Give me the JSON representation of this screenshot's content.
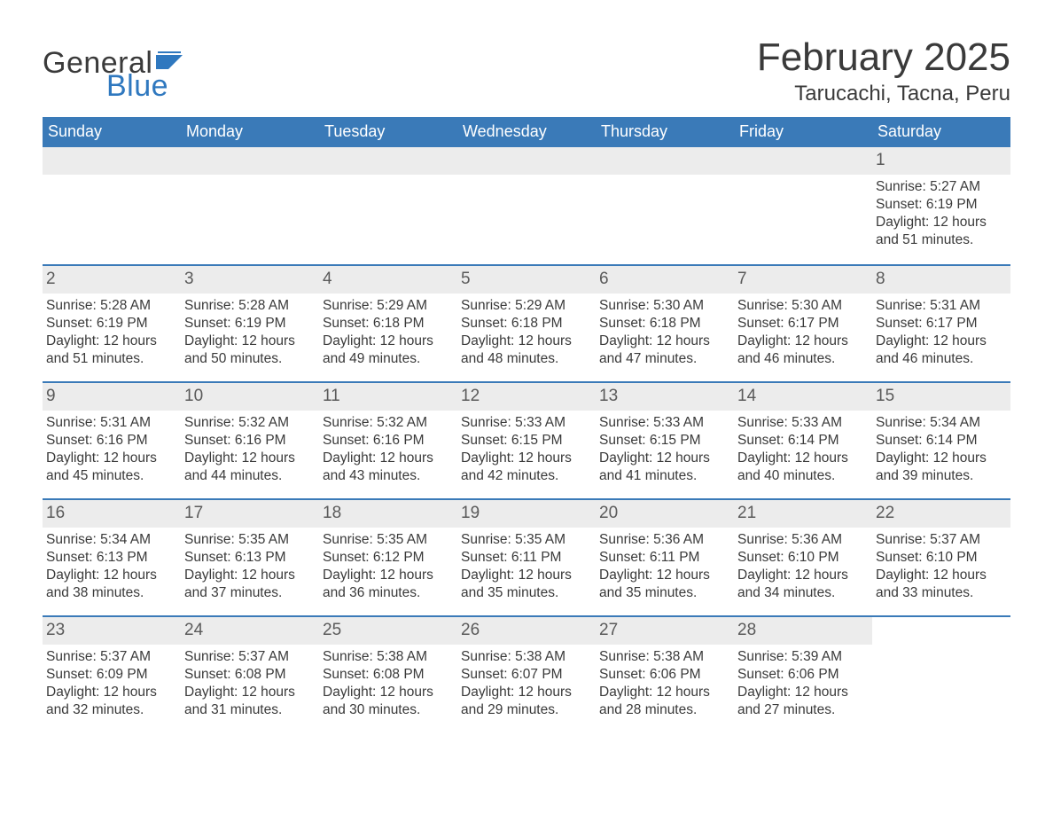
{
  "logo": {
    "text_general": "General",
    "text_blue": "Blue",
    "flag_color": "#2f78bf"
  },
  "header": {
    "month_title": "February 2025",
    "location": "Tarucachi, Tacna, Peru"
  },
  "colors": {
    "header_bar": "#3a7ab8",
    "day_bar_bg": "#ececec",
    "text": "#3a3a3a",
    "accent": "#2f78bf",
    "page_bg": "#ffffff"
  },
  "days_of_week": [
    "Sunday",
    "Monday",
    "Tuesday",
    "Wednesday",
    "Thursday",
    "Friday",
    "Saturday"
  ],
  "labels": {
    "sunrise_prefix": "Sunrise: ",
    "sunset_prefix": "Sunset: ",
    "daylight_prefix": "Daylight: "
  },
  "weeks": [
    [
      null,
      null,
      null,
      null,
      null,
      null,
      {
        "n": "1",
        "sunrise": "5:27 AM",
        "sunset": "6:19 PM",
        "daylight": "12 hours and 51 minutes."
      }
    ],
    [
      {
        "n": "2",
        "sunrise": "5:28 AM",
        "sunset": "6:19 PM",
        "daylight": "12 hours and 51 minutes."
      },
      {
        "n": "3",
        "sunrise": "5:28 AM",
        "sunset": "6:19 PM",
        "daylight": "12 hours and 50 minutes."
      },
      {
        "n": "4",
        "sunrise": "5:29 AM",
        "sunset": "6:18 PM",
        "daylight": "12 hours and 49 minutes."
      },
      {
        "n": "5",
        "sunrise": "5:29 AM",
        "sunset": "6:18 PM",
        "daylight": "12 hours and 48 minutes."
      },
      {
        "n": "6",
        "sunrise": "5:30 AM",
        "sunset": "6:18 PM",
        "daylight": "12 hours and 47 minutes."
      },
      {
        "n": "7",
        "sunrise": "5:30 AM",
        "sunset": "6:17 PM",
        "daylight": "12 hours and 46 minutes."
      },
      {
        "n": "8",
        "sunrise": "5:31 AM",
        "sunset": "6:17 PM",
        "daylight": "12 hours and 46 minutes."
      }
    ],
    [
      {
        "n": "9",
        "sunrise": "5:31 AM",
        "sunset": "6:16 PM",
        "daylight": "12 hours and 45 minutes."
      },
      {
        "n": "10",
        "sunrise": "5:32 AM",
        "sunset": "6:16 PM",
        "daylight": "12 hours and 44 minutes."
      },
      {
        "n": "11",
        "sunrise": "5:32 AM",
        "sunset": "6:16 PM",
        "daylight": "12 hours and 43 minutes."
      },
      {
        "n": "12",
        "sunrise": "5:33 AM",
        "sunset": "6:15 PM",
        "daylight": "12 hours and 42 minutes."
      },
      {
        "n": "13",
        "sunrise": "5:33 AM",
        "sunset": "6:15 PM",
        "daylight": "12 hours and 41 minutes."
      },
      {
        "n": "14",
        "sunrise": "5:33 AM",
        "sunset": "6:14 PM",
        "daylight": "12 hours and 40 minutes."
      },
      {
        "n": "15",
        "sunrise": "5:34 AM",
        "sunset": "6:14 PM",
        "daylight": "12 hours and 39 minutes."
      }
    ],
    [
      {
        "n": "16",
        "sunrise": "5:34 AM",
        "sunset": "6:13 PM",
        "daylight": "12 hours and 38 minutes."
      },
      {
        "n": "17",
        "sunrise": "5:35 AM",
        "sunset": "6:13 PM",
        "daylight": "12 hours and 37 minutes."
      },
      {
        "n": "18",
        "sunrise": "5:35 AM",
        "sunset": "6:12 PM",
        "daylight": "12 hours and 36 minutes."
      },
      {
        "n": "19",
        "sunrise": "5:35 AM",
        "sunset": "6:11 PM",
        "daylight": "12 hours and 35 minutes."
      },
      {
        "n": "20",
        "sunrise": "5:36 AM",
        "sunset": "6:11 PM",
        "daylight": "12 hours and 35 minutes."
      },
      {
        "n": "21",
        "sunrise": "5:36 AM",
        "sunset": "6:10 PM",
        "daylight": "12 hours and 34 minutes."
      },
      {
        "n": "22",
        "sunrise": "5:37 AM",
        "sunset": "6:10 PM",
        "daylight": "12 hours and 33 minutes."
      }
    ],
    [
      {
        "n": "23",
        "sunrise": "5:37 AM",
        "sunset": "6:09 PM",
        "daylight": "12 hours and 32 minutes."
      },
      {
        "n": "24",
        "sunrise": "5:37 AM",
        "sunset": "6:08 PM",
        "daylight": "12 hours and 31 minutes."
      },
      {
        "n": "25",
        "sunrise": "5:38 AM",
        "sunset": "6:08 PM",
        "daylight": "12 hours and 30 minutes."
      },
      {
        "n": "26",
        "sunrise": "5:38 AM",
        "sunset": "6:07 PM",
        "daylight": "12 hours and 29 minutes."
      },
      {
        "n": "27",
        "sunrise": "5:38 AM",
        "sunset": "6:06 PM",
        "daylight": "12 hours and 28 minutes."
      },
      {
        "n": "28",
        "sunrise": "5:39 AM",
        "sunset": "6:06 PM",
        "daylight": "12 hours and 27 minutes."
      },
      null
    ]
  ]
}
